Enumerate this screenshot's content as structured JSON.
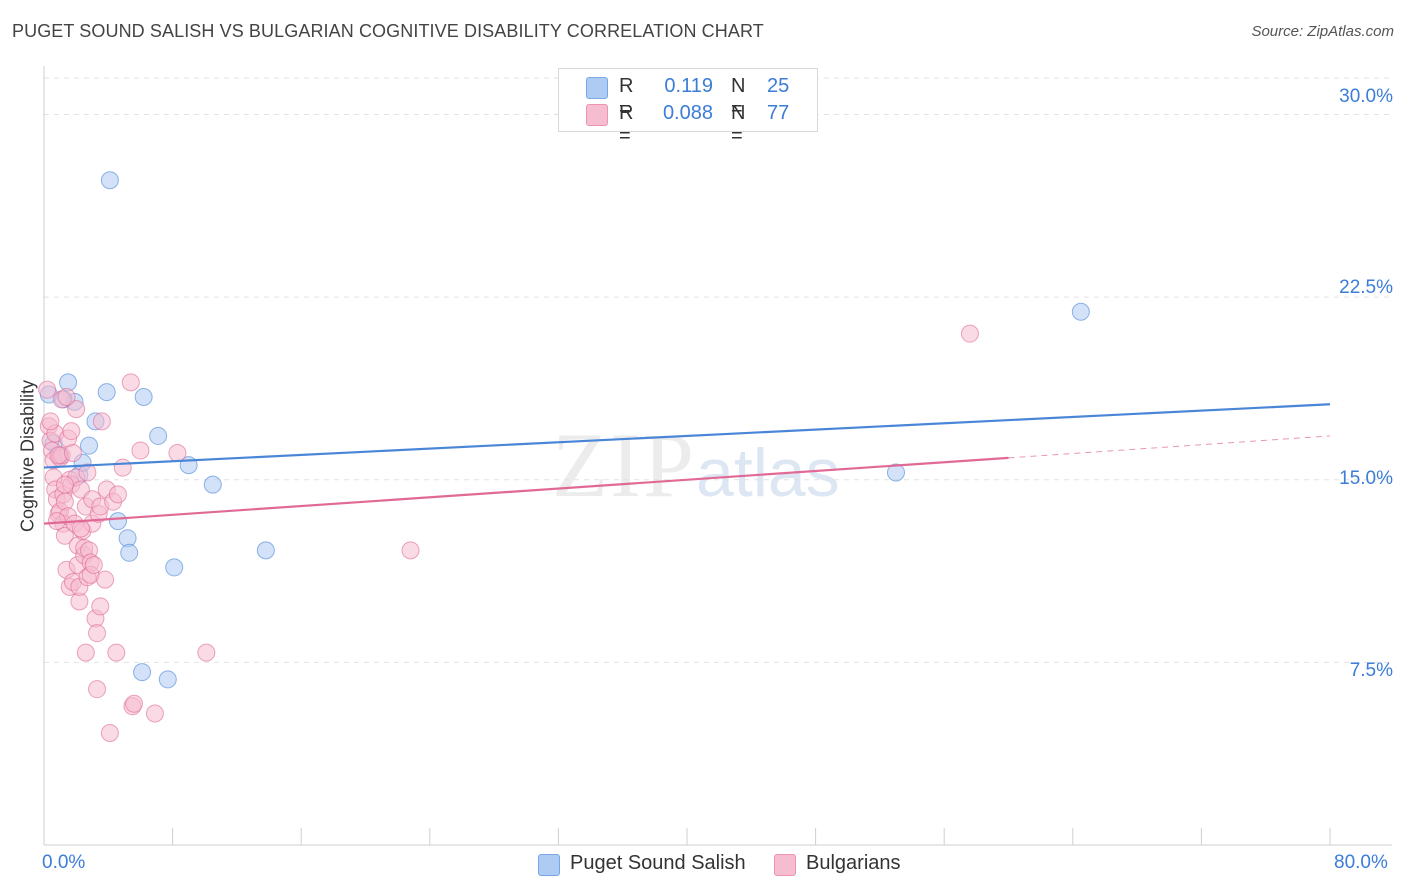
{
  "header": {
    "title": "PUGET SOUND SALISH VS BULGARIAN COGNITIVE DISABILITY CORRELATION CHART",
    "source": "Source: ZipAtlas.com"
  },
  "watermark": {
    "zip": "ZIP",
    "atlas": "atlas"
  },
  "legend": {
    "rows": [
      {
        "r_label": "R =",
        "r_value": "0.119",
        "n_label": "N =",
        "n_value": "25",
        "color": "#aecbf3"
      },
      {
        "r_label": "R =",
        "r_value": "0.088",
        "n_label": "N =",
        "n_value": "77",
        "color": "#f6bcd0"
      }
    ]
  },
  "bottom_legend": {
    "items": [
      {
        "label": "Puget Sound Salish",
        "color": "#aecbf3"
      },
      {
        "label": "Bulgarians",
        "color": "#f6bcd0"
      }
    ]
  },
  "axes": {
    "ylabel": "Cognitive Disability",
    "yticks": [
      "30.0%",
      "22.5%",
      "15.0%",
      "7.5%"
    ],
    "xticks": [
      "0.0%",
      "80.0%"
    ]
  },
  "chart_data": {
    "type": "scatter",
    "title": "PUGET SOUND SALISH VS BULGARIAN COGNITIVE DISABILITY CORRELATION CHART",
    "xlabel": "",
    "ylabel": "Cognitive Disability",
    "xlim": [
      0,
      80
    ],
    "ylim": [
      0,
      31.5
    ],
    "grid": true,
    "legend_position": "top-center",
    "series": [
      {
        "name": "Puget Sound Salish",
        "color": "#4a86d8",
        "fill": "#aecbf3",
        "trend": {
          "x": [
            0,
            80
          ],
          "y": [
            15.5,
            18.1
          ]
        },
        "points": [
          [
            0.3,
            18.5
          ],
          [
            0.6,
            16.5
          ],
          [
            1.0,
            16.0
          ],
          [
            1.5,
            19.0
          ],
          [
            1.9,
            18.2
          ],
          [
            2.2,
            15.2
          ],
          [
            2.4,
            15.7
          ],
          [
            2.8,
            16.4
          ],
          [
            3.2,
            17.4
          ],
          [
            3.9,
            18.6
          ],
          [
            4.1,
            27.3
          ],
          [
            4.6,
            13.3
          ],
          [
            5.2,
            12.6
          ],
          [
            5.3,
            12.0
          ],
          [
            6.1,
            7.1
          ],
          [
            6.2,
            18.4
          ],
          [
            7.1,
            16.8
          ],
          [
            7.7,
            6.8
          ],
          [
            8.1,
            11.4
          ],
          [
            9.0,
            15.6
          ],
          [
            10.5,
            14.8
          ],
          [
            13.8,
            12.1
          ],
          [
            53.0,
            15.3
          ],
          [
            64.5,
            21.9
          ],
          [
            1.2,
            18.3
          ]
        ]
      },
      {
        "name": "Bulgarians",
        "color": "#e06a95",
        "fill": "#f6bcd0",
        "trend": {
          "x": [
            0,
            60
          ],
          "y": [
            13.2,
            15.9
          ]
        },
        "trend_dashed": {
          "x": [
            60,
            80
          ],
          "y": [
            15.9,
            16.8
          ]
        },
        "points": [
          [
            0.2,
            18.7
          ],
          [
            0.3,
            17.2
          ],
          [
            0.4,
            16.6
          ],
          [
            0.5,
            16.2
          ],
          [
            0.6,
            15.8
          ],
          [
            0.6,
            15.1
          ],
          [
            0.7,
            14.6
          ],
          [
            0.7,
            16.9
          ],
          [
            0.8,
            14.2
          ],
          [
            0.9,
            13.6
          ],
          [
            1.0,
            15.9
          ],
          [
            1.0,
            13.7
          ],
          [
            1.1,
            16.0
          ],
          [
            1.1,
            18.3
          ],
          [
            1.2,
            14.4
          ],
          [
            1.2,
            13.2
          ],
          [
            1.3,
            12.7
          ],
          [
            1.3,
            14.1
          ],
          [
            1.4,
            11.3
          ],
          [
            1.5,
            13.5
          ],
          [
            1.5,
            16.7
          ],
          [
            1.6,
            15.0
          ],
          [
            1.6,
            10.6
          ],
          [
            1.7,
            17.0
          ],
          [
            1.7,
            14.8
          ],
          [
            1.8,
            10.8
          ],
          [
            1.9,
            13.2
          ],
          [
            2.0,
            17.9
          ],
          [
            2.0,
            15.1
          ],
          [
            2.1,
            12.3
          ],
          [
            2.1,
            11.5
          ],
          [
            2.2,
            10.0
          ],
          [
            2.2,
            10.6
          ],
          [
            2.3,
            14.6
          ],
          [
            2.4,
            12.9
          ],
          [
            2.5,
            11.9
          ],
          [
            2.5,
            12.2
          ],
          [
            2.6,
            13.9
          ],
          [
            2.6,
            7.9
          ],
          [
            2.7,
            11.0
          ],
          [
            2.8,
            12.1
          ],
          [
            2.9,
            11.6
          ],
          [
            2.9,
            11.1
          ],
          [
            3.0,
            13.2
          ],
          [
            3.0,
            14.2
          ],
          [
            3.1,
            11.5
          ],
          [
            3.2,
            9.3
          ],
          [
            3.3,
            8.7
          ],
          [
            3.3,
            6.4
          ],
          [
            3.4,
            13.6
          ],
          [
            3.5,
            13.9
          ],
          [
            3.5,
            9.8
          ],
          [
            3.6,
            17.4
          ],
          [
            3.8,
            10.9
          ],
          [
            3.9,
            14.6
          ],
          [
            4.1,
            4.6
          ],
          [
            4.3,
            14.1
          ],
          [
            4.5,
            7.9
          ],
          [
            4.6,
            14.4
          ],
          [
            4.9,
            15.5
          ],
          [
            5.4,
            19.0
          ],
          [
            5.5,
            5.7
          ],
          [
            5.6,
            5.8
          ],
          [
            6.0,
            16.2
          ],
          [
            6.9,
            5.4
          ],
          [
            8.3,
            16.1
          ],
          [
            10.1,
            7.9
          ],
          [
            22.8,
            12.1
          ],
          [
            57.6,
            21.0
          ],
          [
            0.4,
            17.4
          ],
          [
            0.9,
            16.0
          ],
          [
            1.4,
            18.4
          ],
          [
            1.8,
            16.1
          ],
          [
            2.3,
            13.0
          ],
          [
            0.8,
            13.3
          ],
          [
            1.3,
            14.8
          ],
          [
            2.7,
            15.3
          ]
        ]
      }
    ]
  }
}
